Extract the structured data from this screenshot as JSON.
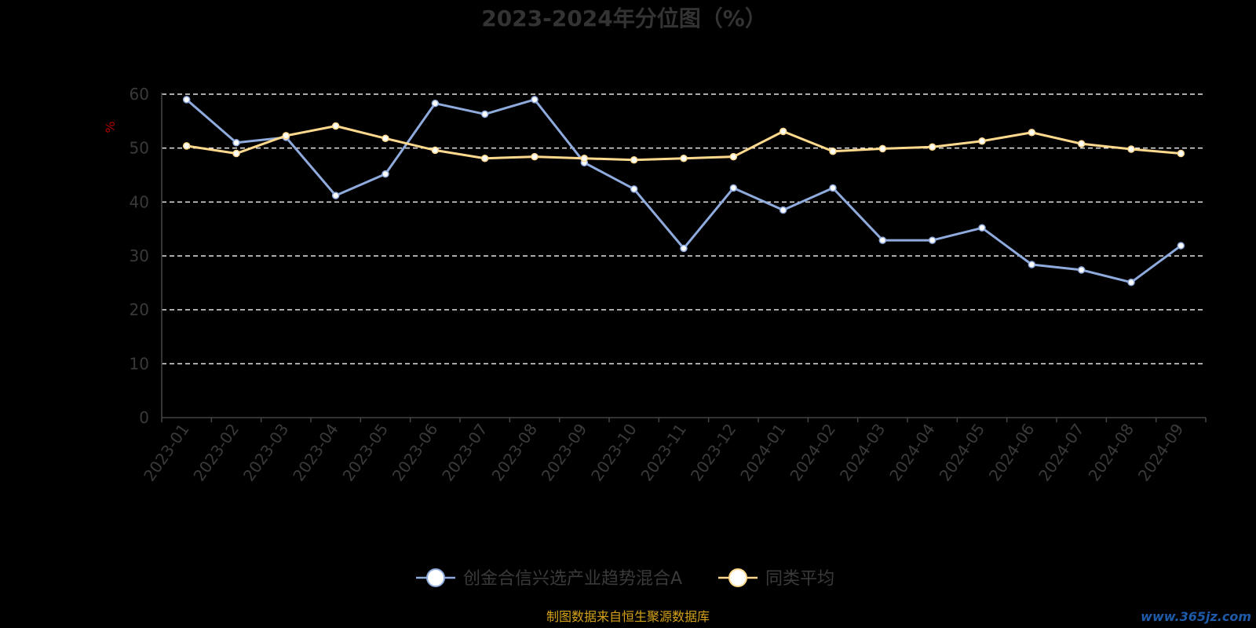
{
  "chart_data": {
    "type": "line",
    "title": "2023-2024年分位图（%）",
    "ylabel": "%",
    "ylim": [
      0,
      60
    ],
    "yticks": [
      0,
      10,
      20,
      30,
      40,
      50,
      60
    ],
    "grid": "horizontal-dashed",
    "legend_position": "bottom",
    "categories": [
      "2023-01",
      "2023-02",
      "2023-03",
      "2023-04",
      "2023-05",
      "2023-06",
      "2023-07",
      "2023-08",
      "2023-09",
      "2023-10",
      "2023-11",
      "2023-12",
      "2024-01",
      "2024-02",
      "2024-03",
      "2024-04",
      "2024-05",
      "2024-06",
      "2024-07",
      "2024-08",
      "2024-09"
    ],
    "series": [
      {
        "name": "创金合信兴选产业趋势混合A",
        "color": "#8faadc",
        "values": [
          59.0,
          51.0,
          52.0,
          41.2,
          45.2,
          58.3,
          56.3,
          59.0,
          47.3,
          42.4,
          31.4,
          42.6,
          38.5,
          42.6,
          32.9,
          32.9,
          35.2,
          28.4,
          27.4,
          25.1,
          31.9
        ]
      },
      {
        "name": "同类平均",
        "color": "#ffd98e",
        "values": [
          50.4,
          49.0,
          52.3,
          54.1,
          51.8,
          49.6,
          48.1,
          48.4,
          48.1,
          47.8,
          48.1,
          48.4,
          53.1,
          49.4,
          49.9,
          50.2,
          51.3,
          52.9,
          50.8,
          49.8,
          49.0
        ]
      }
    ]
  },
  "footer": {
    "source_text": "制图数据来自恒生聚源数据库",
    "watermark": "www.365jz.com"
  }
}
